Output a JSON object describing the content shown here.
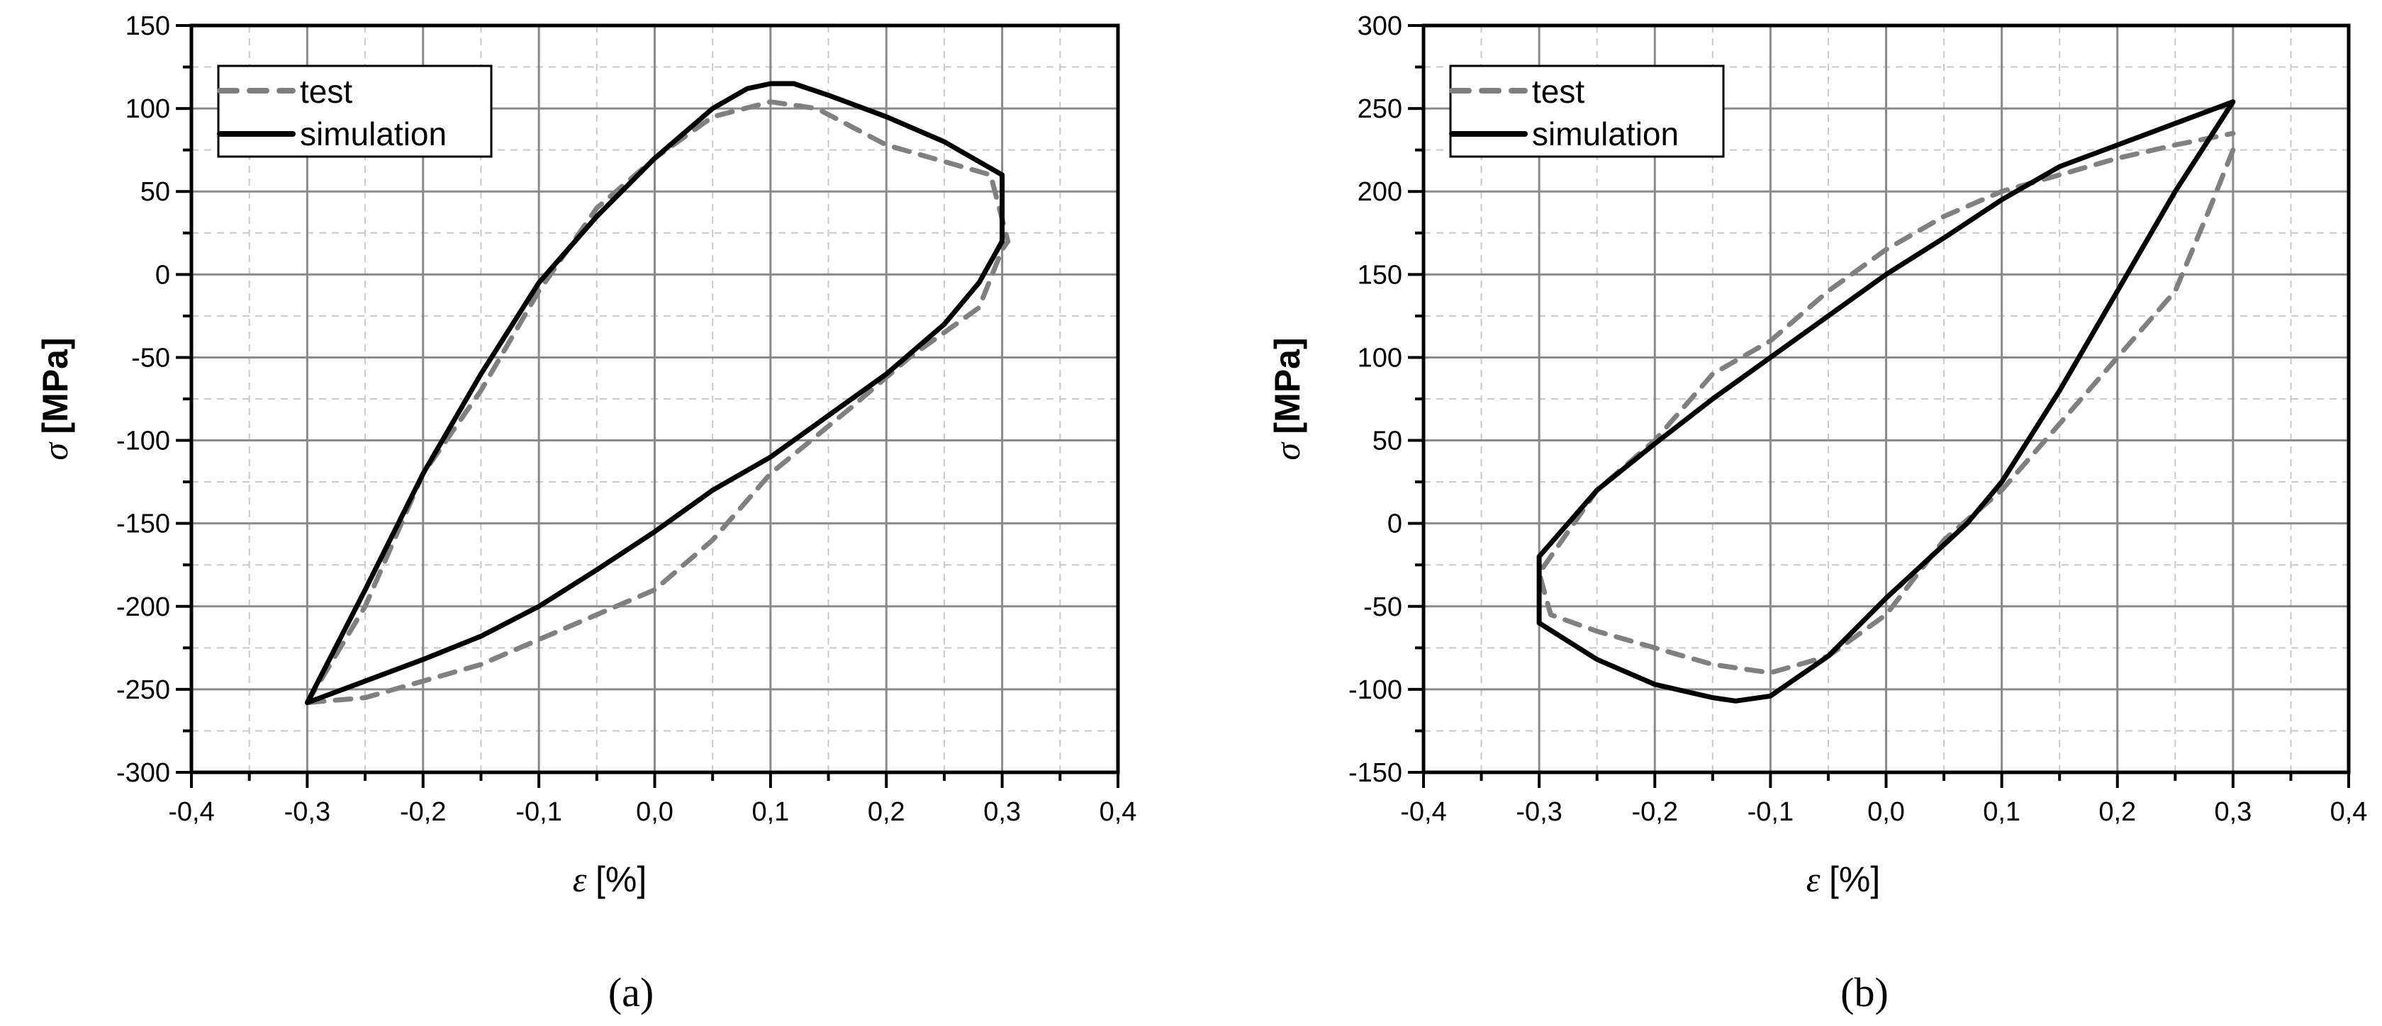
{
  "chart_data": [
    {
      "panel": "a",
      "caption": "(a)",
      "type": "line",
      "xlabel_symbol": "ε",
      "xlabel_unit": "[%]",
      "ylabel_symbol": "σ",
      "ylabel_unit": "[MPa]",
      "xlim": [
        -0.4,
        0.4
      ],
      "ylim": [
        -300,
        150
      ],
      "xticks": [
        "-0,4",
        "-0,3",
        "-0,2",
        "-0,1",
        "0,0",
        "0,1",
        "0,2",
        "0,3",
        "0,4"
      ],
      "xtick_values": [
        -0.4,
        -0.3,
        -0.2,
        -0.1,
        0.0,
        0.1,
        0.2,
        0.3,
        0.4
      ],
      "yticks": [
        "150",
        "100",
        "50",
        "0",
        "-50",
        "-100",
        "-150",
        "-200",
        "-250",
        "-300"
      ],
      "ytick_values": [
        150,
        100,
        50,
        0,
        -50,
        -100,
        -150,
        -200,
        -250,
        -300
      ],
      "grid": true,
      "legend_position": "upper-left",
      "legend": [
        "test",
        "simulation"
      ],
      "series": [
        {
          "name": "test",
          "style": "dashed",
          "color": "#808080",
          "x": [
            -0.3,
            -0.25,
            -0.2,
            -0.15,
            -0.1,
            -0.05,
            0.0,
            0.05,
            0.1,
            0.14,
            0.2,
            0.23,
            0.29,
            0.305,
            0.3,
            0.28,
            0.22,
            0.17,
            0.1,
            0.05,
            0.0,
            -0.05,
            -0.1,
            -0.15,
            -0.2,
            -0.25,
            -0.3
          ],
          "y": [
            -258,
            -200,
            -120,
            -70,
            -10,
            40,
            70,
            95,
            104,
            100,
            78,
            72,
            60,
            20,
            15,
            -20,
            -50,
            -80,
            -120,
            -160,
            -190,
            -205,
            -220,
            -235,
            -245,
            -255,
            -258
          ]
        },
        {
          "name": "simulation",
          "style": "solid",
          "color": "#000000",
          "x": [
            -0.3,
            -0.25,
            -0.2,
            -0.15,
            -0.1,
            -0.05,
            0.0,
            0.05,
            0.08,
            0.1,
            0.12,
            0.15,
            0.2,
            0.25,
            0.3,
            0.3,
            0.28,
            0.25,
            0.2,
            0.15,
            0.1,
            0.05,
            0.0,
            -0.05,
            -0.1,
            -0.15,
            -0.2,
            -0.25,
            -0.3
          ],
          "y": [
            -258,
            -190,
            -120,
            -60,
            -5,
            35,
            70,
            100,
            112,
            115,
            115,
            108,
            95,
            80,
            60,
            20,
            -5,
            -30,
            -60,
            -85,
            -110,
            -130,
            -155,
            -178,
            -200,
            -218,
            -232,
            -245,
            -258
          ]
        }
      ]
    },
    {
      "panel": "b",
      "caption": "(b)",
      "type": "line",
      "xlabel_symbol": "ε",
      "xlabel_unit": "[%]",
      "ylabel_symbol": "σ",
      "ylabel_unit": "[MPa]",
      "xlim": [
        -0.4,
        0.4
      ],
      "ylim": [
        -150,
        300
      ],
      "xticks": [
        "-0,4",
        "-0,3",
        "-0,2",
        "-0,1",
        "0,0",
        "0,1",
        "0,2",
        "0,3",
        "0,4"
      ],
      "xtick_values": [
        -0.4,
        -0.3,
        -0.2,
        -0.1,
        0.0,
        0.1,
        0.2,
        0.3,
        0.4
      ],
      "yticks": [
        "300",
        "250",
        "200",
        "150",
        "100",
        "50",
        "0",
        "-50",
        "-100",
        "-150"
      ],
      "ytick_values": [
        300,
        250,
        200,
        150,
        100,
        50,
        0,
        -50,
        -100,
        -150
      ],
      "grid": true,
      "legend_position": "upper-left",
      "legend": [
        "test",
        "simulation"
      ],
      "series": [
        {
          "name": "test",
          "style": "dashed",
          "color": "#808080",
          "x": [
            0.3,
            0.28,
            0.25,
            0.2,
            0.15,
            0.1,
            0.05,
            0.0,
            -0.05,
            -0.1,
            -0.15,
            -0.2,
            -0.25,
            -0.29,
            -0.3,
            -0.29,
            -0.25,
            -0.2,
            -0.15,
            -0.1,
            -0.05,
            0.0,
            0.05,
            0.1,
            0.15,
            0.2,
            0.25,
            0.3
          ],
          "y": [
            225,
            190,
            140,
            100,
            60,
            20,
            -10,
            -55,
            -80,
            -90,
            -85,
            -75,
            -65,
            -55,
            -30,
            -20,
            20,
            50,
            90,
            110,
            140,
            165,
            185,
            200,
            210,
            220,
            228,
            235
          ]
        },
        {
          "name": "simulation",
          "style": "solid",
          "color": "#000000",
          "x": [
            0.3,
            0.25,
            0.2,
            0.15,
            0.1,
            0.07,
            0.0,
            -0.05,
            -0.1,
            -0.13,
            -0.15,
            -0.2,
            -0.25,
            -0.3,
            -0.3,
            -0.25,
            -0.2,
            -0.15,
            -0.1,
            -0.05,
            0.0,
            0.05,
            0.1,
            0.15,
            0.2,
            0.3
          ],
          "y": [
            254,
            200,
            140,
            80,
            25,
            0,
            -45,
            -80,
            -104,
            -107,
            -105,
            -97,
            -82,
            -60,
            -20,
            20,
            48,
            75,
            100,
            125,
            150,
            172,
            195,
            215,
            228,
            254
          ]
        }
      ]
    }
  ],
  "legend": {
    "test_label": "test",
    "simulation_label": "simulation"
  },
  "panels": [
    {
      "caption": "(a)",
      "ylabel": "σ [MPa]",
      "xlabel_symbol": "ε",
      "xlabel_unit": "[%]"
    },
    {
      "caption": "(b)",
      "ylabel": "σ [MPa]",
      "xlabel_symbol": "ε",
      "xlabel_unit": "[%]"
    }
  ]
}
